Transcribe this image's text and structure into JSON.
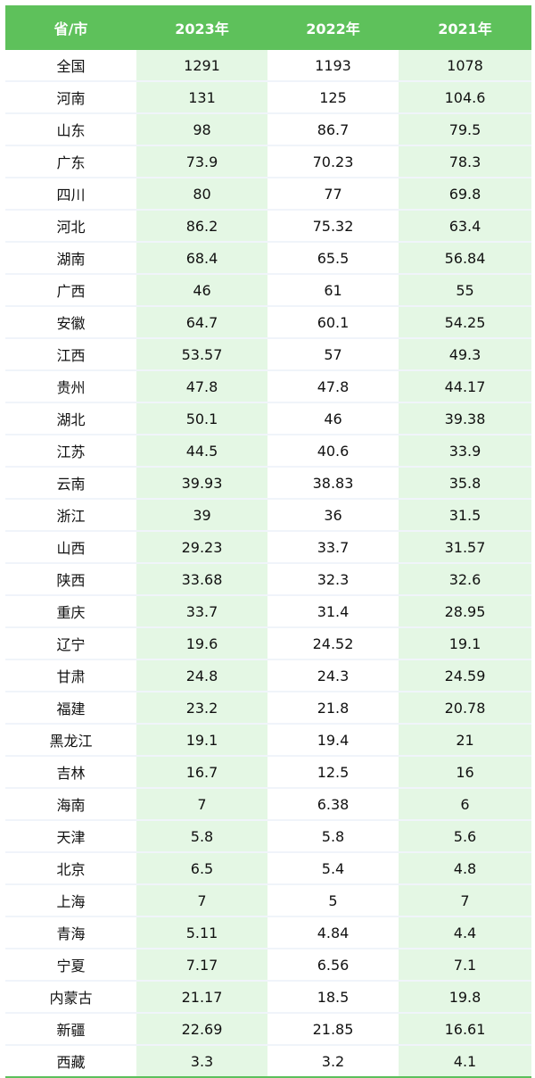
{
  "table": {
    "headers": [
      "省/市",
      "2023年",
      "2022年",
      "2021年"
    ],
    "rows": [
      [
        "全国",
        "1291",
        "1193",
        "1078"
      ],
      [
        "河南",
        "131",
        "125",
        "104.6"
      ],
      [
        "山东",
        "98",
        "86.7",
        "79.5"
      ],
      [
        "广东",
        "73.9",
        "70.23",
        "78.3"
      ],
      [
        "四川",
        "80",
        "77",
        "69.8"
      ],
      [
        "河北",
        "86.2",
        "75.32",
        "63.4"
      ],
      [
        "湖南",
        "68.4",
        "65.5",
        "56.84"
      ],
      [
        "广西",
        "46",
        "61",
        "55"
      ],
      [
        "安徽",
        "64.7",
        "60.1",
        "54.25"
      ],
      [
        "江西",
        "53.57",
        "57",
        "49.3"
      ],
      [
        "贵州",
        "47.8",
        "47.8",
        "44.17"
      ],
      [
        "湖北",
        "50.1",
        "46",
        "39.38"
      ],
      [
        "江苏",
        "44.5",
        "40.6",
        "33.9"
      ],
      [
        "云南",
        "39.93",
        "38.83",
        "35.8"
      ],
      [
        "浙江",
        "39",
        "36",
        "31.5"
      ],
      [
        "山西",
        "29.23",
        "33.7",
        "31.57"
      ],
      [
        "陕西",
        "33.68",
        "32.3",
        "32.6"
      ],
      [
        "重庆",
        "33.7",
        "31.4",
        "28.95"
      ],
      [
        "辽宁",
        "19.6",
        "24.52",
        "19.1"
      ],
      [
        "甘肃",
        "24.8",
        "24.3",
        "24.59"
      ],
      [
        "福建",
        "23.2",
        "21.8",
        "20.78"
      ],
      [
        "黑龙江",
        "19.1",
        "19.4",
        "21"
      ],
      [
        "吉林",
        "16.7",
        "12.5",
        "16"
      ],
      [
        "海南",
        "7",
        "6.38",
        "6"
      ],
      [
        "天津",
        "5.8",
        "5.8",
        "5.6"
      ],
      [
        "北京",
        "6.5",
        "5.4",
        "4.8"
      ],
      [
        "上海",
        "7",
        "5",
        "7"
      ],
      [
        "青海",
        "5.11",
        "4.84",
        "4.4"
      ],
      [
        "宁夏",
        "7.17",
        "6.56",
        "7.1"
      ],
      [
        "内蒙古",
        "21.17",
        "18.5",
        "19.8"
      ],
      [
        "新疆",
        "22.69",
        "21.85",
        "16.61"
      ],
      [
        "西藏",
        "3.3",
        "3.2",
        "4.1"
      ]
    ]
  },
  "colors": {
    "header_bg": "#5ec15b",
    "alt_column_bg": "#e4f7e4",
    "header_text": "#ffffff"
  }
}
